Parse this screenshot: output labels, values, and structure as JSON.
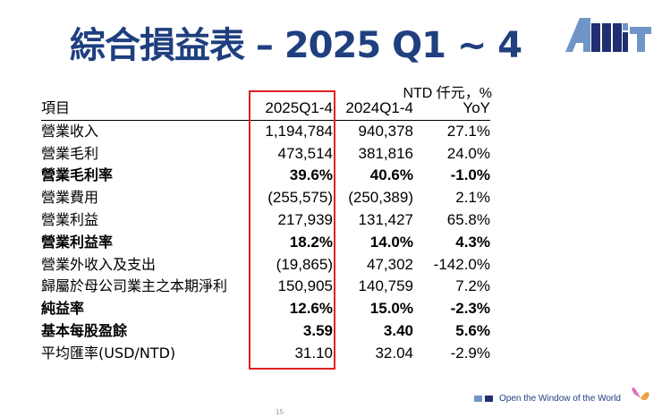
{
  "title": "綜合損益表 – 2025 Q1 ~ 4",
  "logo_text": "AMT",
  "unit": "NTD 仟元，%",
  "columns": [
    "項目",
    "2025Q1-4",
    "2024Q1-4",
    "YoY"
  ],
  "rows": [
    {
      "label": "營業收入",
      "v1": "1,194,784",
      "v2": "940,378",
      "yoy": "27.1%",
      "bold": false
    },
    {
      "label": "營業毛利",
      "v1": "473,514",
      "v2": "381,816",
      "yoy": "24.0%",
      "bold": false
    },
    {
      "label": "營業毛利率",
      "v1": "39.6%",
      "v2": "40.6%",
      "yoy": "-1.0%",
      "bold": true
    },
    {
      "label": "營業費用",
      "v1": "(255,575)",
      "v2": "(250,389)",
      "yoy": "2.1%",
      "bold": false
    },
    {
      "label": "營業利益",
      "v1": "217,939",
      "v2": "131,427",
      "yoy": "65.8%",
      "bold": false
    },
    {
      "label": "營業利益率",
      "v1": "18.2%",
      "v2": "14.0%",
      "yoy": "4.3%",
      "bold": true
    },
    {
      "label": "營業外收入及支出",
      "v1": "(19,865)",
      "v2": "47,302",
      "yoy": "-142.0%",
      "bold": false
    },
    {
      "label": "歸屬於母公司業主之本期淨利",
      "v1": "150,905",
      "v2": "140,759",
      "yoy": "7.2%",
      "bold": false
    },
    {
      "label": "純益率",
      "v1": "12.6%",
      "v2": "15.0%",
      "yoy": "-2.3%",
      "bold": true
    },
    {
      "label": "基本每股盈餘",
      "v1": "3.59",
      "v2": "3.40",
      "yoy": "5.6%",
      "bold": true
    },
    {
      "label": "平均匯率(USD/NTD)",
      "v1": "31.10",
      "v2": "32.04",
      "yoy": "-2.9%",
      "bold": false
    }
  ],
  "footer": "Open the Window of the World",
  "page_number": "15",
  "colors": {
    "title": "#1f3f7f",
    "highlight": "#e02020",
    "logo_light": "#6f95c8",
    "logo_dark": "#1f2f6f"
  }
}
